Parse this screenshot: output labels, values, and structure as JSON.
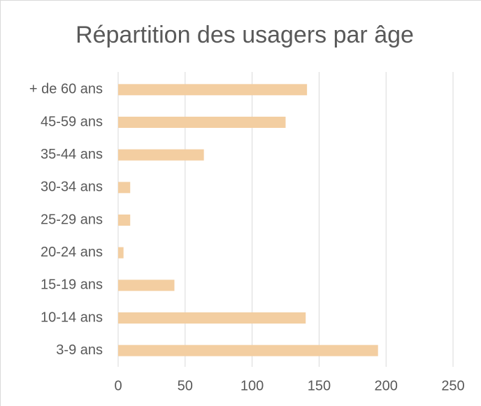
{
  "chart_data": {
    "type": "bar",
    "orientation": "horizontal",
    "title": "Répartition des usagers par âge",
    "categories": [
      "+ de 60 ans",
      "45-59 ans",
      "35-44 ans",
      "30-34 ans",
      "25-29 ans",
      "20-24 ans",
      "15-19 ans",
      "10-14 ans",
      "3-9 ans"
    ],
    "values": [
      141,
      125,
      64,
      9,
      9,
      4,
      42,
      140,
      194
    ],
    "color": "#f3cea1",
    "xlim": [
      0,
      250
    ],
    "xticks": [
      0,
      50,
      100,
      150,
      200,
      250
    ],
    "grid": true
  }
}
